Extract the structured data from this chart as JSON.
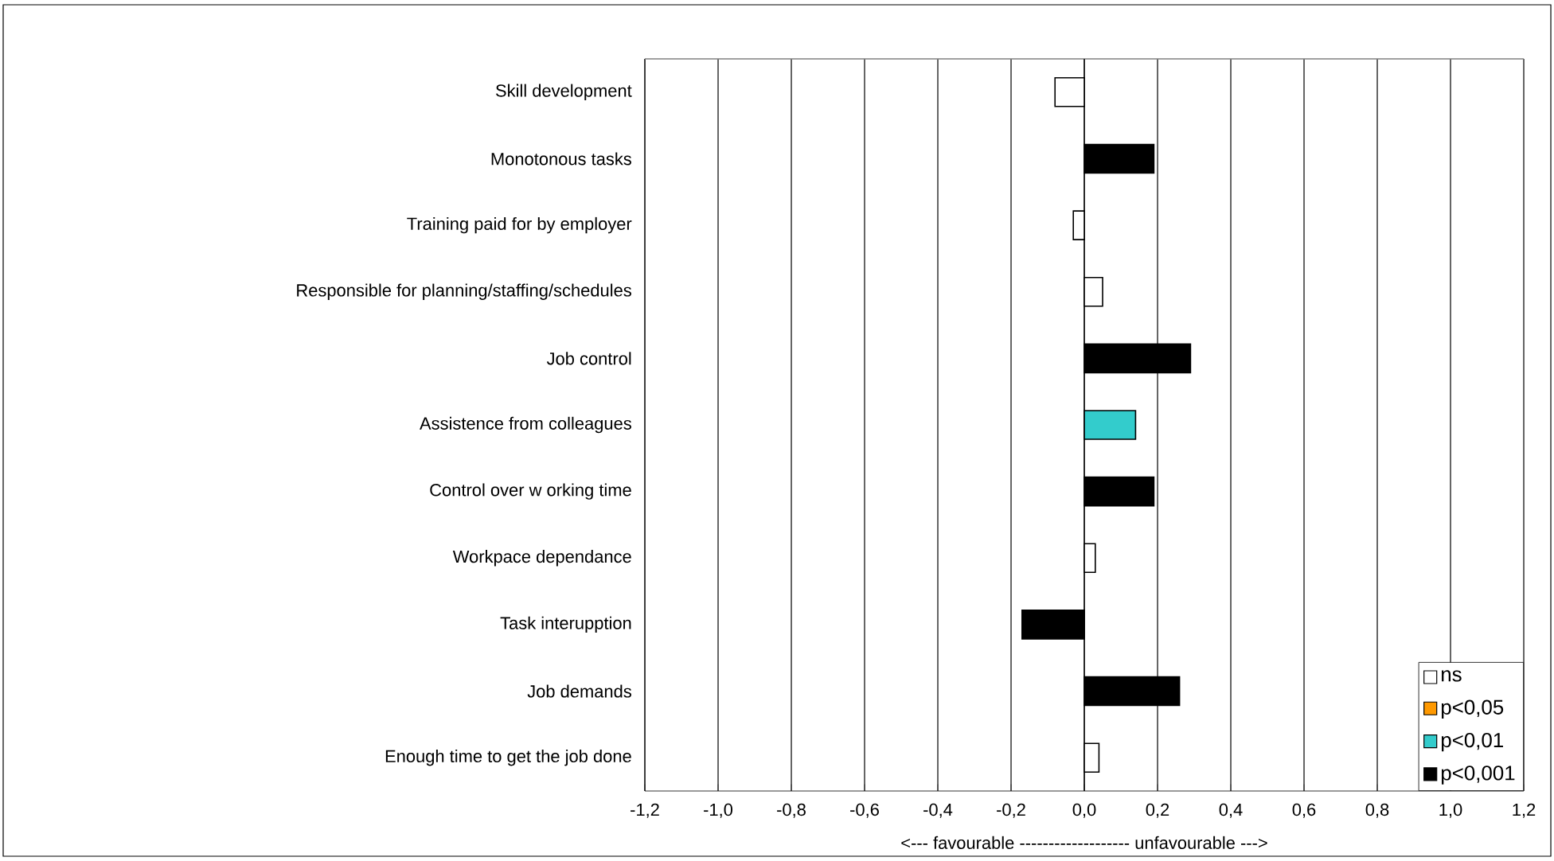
{
  "chart_data": {
    "type": "bar",
    "orientation": "horizontal",
    "categories": [
      "Skill development",
      "Monotonous tasks",
      "Training paid for by employer",
      "Responsible for planning/staffing/schedules",
      "Job control",
      "Assistence from colleagues",
      "Control over w orking time",
      "Workpace dependance",
      "Task interupption",
      "Job demands",
      "Enough time to get the job done"
    ],
    "series": [
      {
        "name": "ns",
        "color": "#ffffff",
        "values": [
          -0.08,
          null,
          -0.03,
          0.05,
          null,
          null,
          null,
          0.03,
          null,
          null,
          0.04
        ]
      },
      {
        "name": "p<0,05",
        "color": "#ff9900",
        "values": [
          null,
          null,
          null,
          null,
          null,
          null,
          null,
          null,
          null,
          null,
          null
        ]
      },
      {
        "name": "p<0,01",
        "color": "#33cccc",
        "values": [
          null,
          null,
          null,
          null,
          null,
          0.14,
          null,
          null,
          null,
          null,
          null
        ]
      },
      {
        "name": "p<0,001",
        "color": "#000000",
        "values": [
          null,
          0.19,
          null,
          null,
          0.29,
          null,
          0.19,
          null,
          -0.17,
          0.26,
          null
        ]
      }
    ],
    "xlabel": "<--- favourable ------------------- unfavourable --->",
    "xlim": [
      -1.2,
      1.2
    ],
    "xticks": [
      {
        "value": -1.2,
        "label": "-1,2"
      },
      {
        "value": -1.0,
        "label": "-1,0"
      },
      {
        "value": -0.8,
        "label": "-0,8"
      },
      {
        "value": -0.6,
        "label": "-0,6"
      },
      {
        "value": -0.4,
        "label": "-0,4"
      },
      {
        "value": -0.2,
        "label": "-0,2"
      },
      {
        "value": 0.0,
        "label": "0,0"
      },
      {
        "value": 0.2,
        "label": "0,2"
      },
      {
        "value": 0.4,
        "label": "0,4"
      },
      {
        "value": 0.6,
        "label": "0,6"
      },
      {
        "value": 0.8,
        "label": "0,8"
      },
      {
        "value": 1.0,
        "label": "1,0"
      },
      {
        "value": 1.2,
        "label": "1,2"
      }
    ],
    "grid": "x",
    "legend": "bottom right"
  }
}
